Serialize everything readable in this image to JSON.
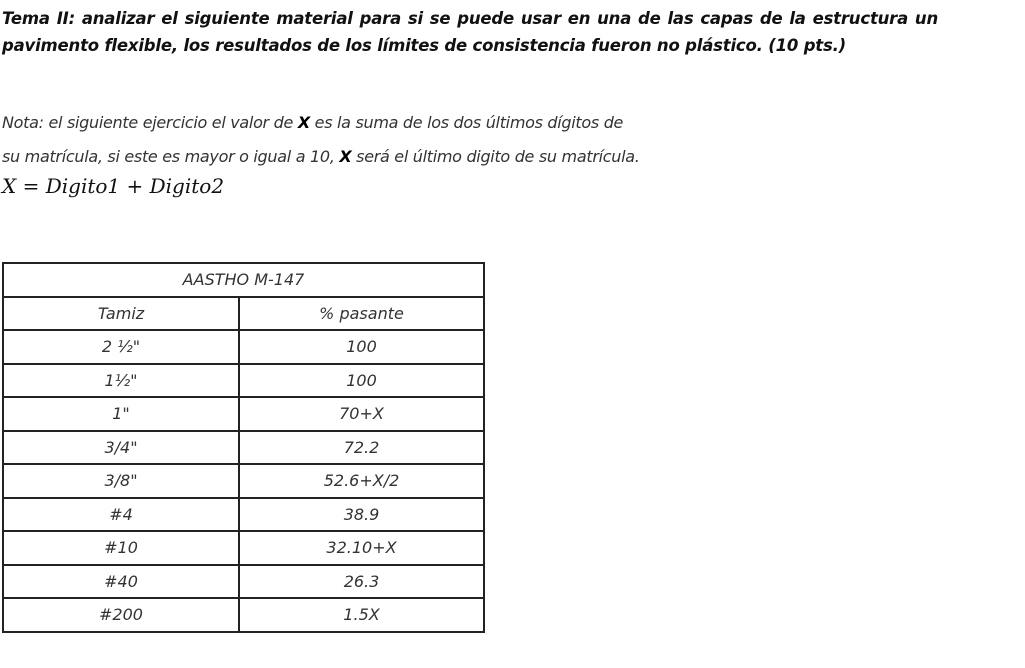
{
  "heading": "Tema II: analizar el siguiente material para si se puede usar en una de las capas de la estructura un pavimento flexible, los resultados de los límites de consistencia fueron no plástico. (10 pts.)",
  "note": {
    "line1_pre": "Nota: el siguiente ejercicio el valor de ",
    "x": "X",
    "line1_post": " es la suma de los dos últimos dígitos de",
    "line2_pre": "su matrícula, si este es mayor o igual a 10, ",
    "line2_post": " será el último digito de su matrícula."
  },
  "formula": "X = Digito1 + Digito2",
  "table": {
    "title": "AASTHO M-147",
    "headers": [
      "Tamiz",
      "% pasante"
    ],
    "rows": [
      [
        "2 ½\"",
        "100"
      ],
      [
        "1½\"",
        "100"
      ],
      [
        "1\"",
        "70+X"
      ],
      [
        "3/4\"",
        "72.2"
      ],
      [
        "3/8\"",
        "52.6+X/2"
      ],
      [
        "#4",
        "38.9"
      ],
      [
        "#10",
        "32.10+X"
      ],
      [
        "#40",
        "26.3"
      ],
      [
        "#200",
        "1.5X"
      ]
    ]
  }
}
